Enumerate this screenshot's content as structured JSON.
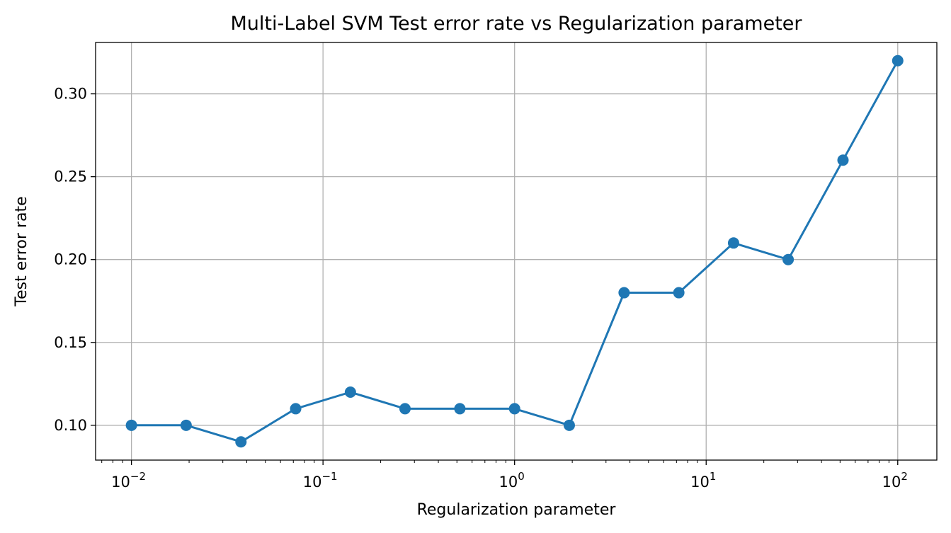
{
  "chart_data": {
    "type": "line",
    "title": "Multi-Label SVM Test error rate vs Regularization parameter",
    "xlabel": "Regularization parameter",
    "ylabel": "Test error rate",
    "xscale": "log",
    "xlim": [
      0.0065,
      160
    ],
    "ylim": [
      0.079,
      0.331
    ],
    "grid": true,
    "x_ticks": [
      {
        "value": 0.01,
        "base": "10",
        "exp": "−2"
      },
      {
        "value": 0.1,
        "base": "10",
        "exp": "−1"
      },
      {
        "value": 1,
        "base": "10",
        "exp": "0"
      },
      {
        "value": 10,
        "base": "10",
        "exp": "1"
      },
      {
        "value": 100,
        "base": "10",
        "exp": "2"
      }
    ],
    "y_ticks": [
      {
        "value": 0.1,
        "label": "0.10"
      },
      {
        "value": 0.15,
        "label": "0.15"
      },
      {
        "value": 0.2,
        "label": "0.20"
      },
      {
        "value": 0.25,
        "label": "0.25"
      },
      {
        "value": 0.3,
        "label": "0.30"
      }
    ],
    "series": [
      {
        "color": "#1f77b4",
        "x": [
          0.01,
          0.0193,
          0.0373,
          0.072,
          0.139,
          0.268,
          0.518,
          1.0,
          1.93,
          3.73,
          7.2,
          13.9,
          26.8,
          51.8,
          100
        ],
        "values": [
          0.1,
          0.1,
          0.09,
          0.11,
          0.12,
          0.11,
          0.11,
          0.11,
          0.1,
          0.18,
          0.18,
          0.21,
          0.2,
          0.26,
          0.32
        ]
      }
    ]
  }
}
